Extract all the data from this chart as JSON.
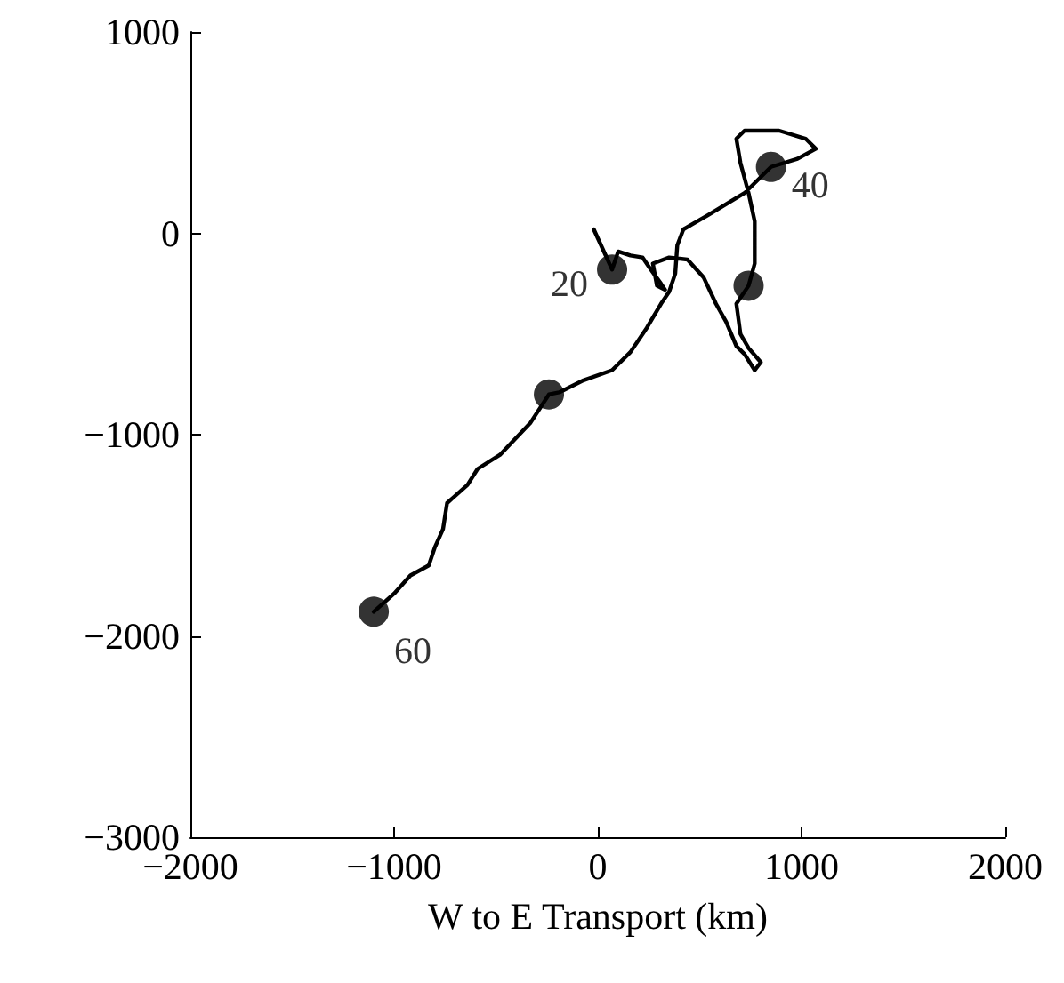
{
  "chart_data": {
    "type": "line",
    "xlabel": "W to E Transport (km)",
    "xlim": [
      -2000,
      2000
    ],
    "xticks": [
      -2000,
      -1000,
      0,
      1000,
      2000
    ],
    "ylim": [
      -3000,
      1000
    ],
    "yticks": [
      -3000,
      -2000,
      -1000,
      0,
      1000
    ],
    "grid": false,
    "series": [
      {
        "color": "#000000",
        "marker": "none",
        "line_style": "solid",
        "x": [
          -20,
          70,
          100,
          160,
          220,
          260,
          310,
          330,
          290,
          270,
          350,
          440,
          520,
          580,
          630,
          680,
          720,
          770,
          800,
          740,
          700,
          680,
          740,
          770,
          770,
          740,
          700,
          680,
          720,
          890,
          1020,
          1070,
          980,
          850,
          720,
          540,
          420,
          390,
          380,
          350,
          310,
          240,
          160,
          70,
          -70,
          -190,
          -240,
          -330,
          -480,
          -590,
          -640,
          -740,
          -760,
          -800,
          -830,
          -920,
          -1000,
          -1100
        ],
        "values": [
          20,
          -180,
          -90,
          -110,
          -120,
          -180,
          -250,
          -280,
          -260,
          -150,
          -120,
          -130,
          -220,
          -350,
          -440,
          -560,
          -600,
          -680,
          -640,
          -570,
          -500,
          -350,
          -260,
          -150,
          60,
          200,
          350,
          470,
          510,
          510,
          470,
          420,
          370,
          330,
          200,
          90,
          20,
          -60,
          -200,
          -290,
          -350,
          -470,
          -590,
          -680,
          -730,
          -790,
          -800,
          -940,
          -1100,
          -1170,
          -1250,
          -1340,
          -1470,
          -1560,
          -1650,
          -1700,
          -1790,
          -1880
        ]
      },
      {
        "type": "scatter",
        "color": "#000000",
        "marker": "circle",
        "x": [
          70,
          740,
          850,
          -240,
          -1100
        ],
        "values": [
          -180,
          -260,
          330,
          -800,
          -1880
        ]
      }
    ],
    "annotations": [
      {
        "text": "20",
        "x": 70,
        "y": -180
      },
      {
        "text": "40",
        "x": 850,
        "y": 330
      },
      {
        "text": "60",
        "x": -1100,
        "y": -1880
      }
    ]
  }
}
